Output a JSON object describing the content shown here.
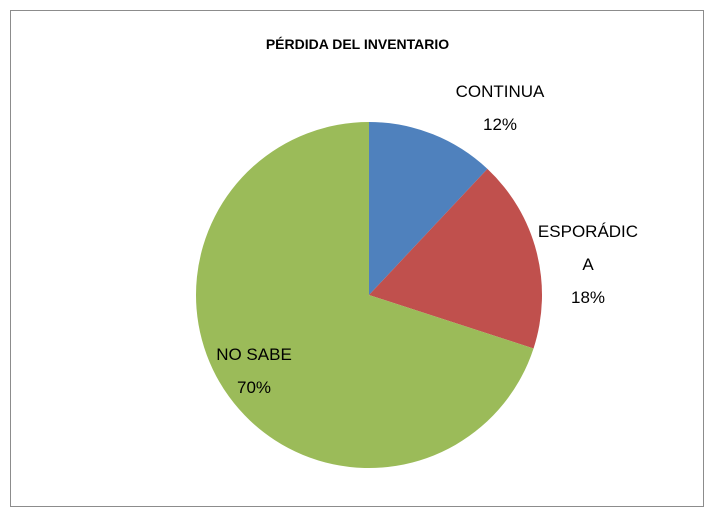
{
  "chart_data": {
    "type": "pie",
    "title": "PÉRDIDA DEL INVENTARIO",
    "categories": [
      "CONTINUA",
      "ESPORÁDICA",
      "NO SABE"
    ],
    "values": [
      12,
      18,
      70
    ],
    "value_labels": [
      "12%",
      "18%",
      "70%"
    ],
    "colors": [
      "#4f81bd",
      "#c0504d",
      "#9bbb59"
    ]
  }
}
